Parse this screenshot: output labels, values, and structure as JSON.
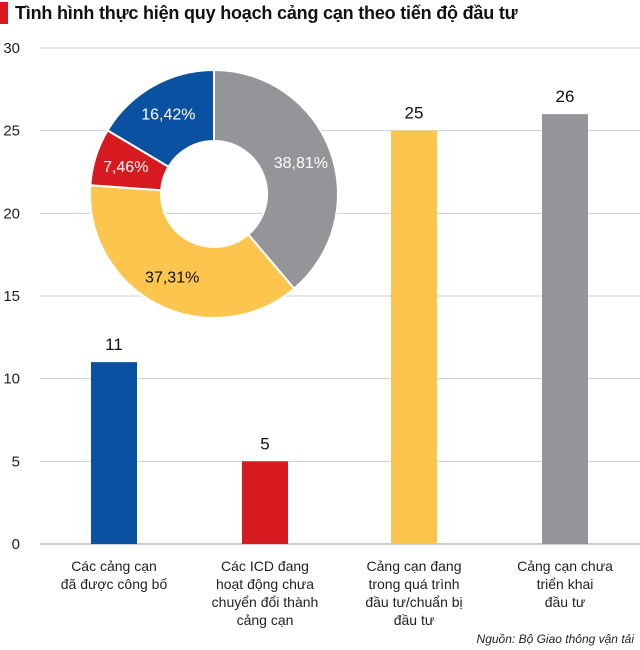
{
  "title": "Tình hình thực hiện quy hoạch cảng cạn theo tiến độ đầu tư",
  "source": "Nguồn: Bộ Giao thông vận tải",
  "chart_data": [
    {
      "type": "bar",
      "categories": [
        [
          "Các cảng cạn",
          "đã được công bố"
        ],
        [
          "Các ICD đang",
          "hoạt động chưa",
          "chuyển đổi thành",
          "cảng cạn"
        ],
        [
          "Cảng cạn đang",
          "trong quá trình",
          "đầu tư/chuẩn bị",
          "đầu tư"
        ],
        [
          "Cảng cạn chưa",
          "triển khai",
          "đầu tư"
        ]
      ],
      "values": [
        11,
        5,
        25,
        26
      ],
      "colors": [
        "#0a51a1",
        "#d71920",
        "#fcc54d",
        "#939598"
      ],
      "ylim": [
        0,
        30
      ],
      "yticks": [
        0,
        5,
        10,
        15,
        20,
        25,
        30
      ],
      "grid": true
    },
    {
      "type": "pie",
      "donut": true,
      "slices": [
        {
          "label": "38,81%",
          "value": 38.81,
          "color": "#939598",
          "text_color": "#ffffff"
        },
        {
          "label": "37,31%",
          "value": 37.31,
          "color": "#fcc54d",
          "text_color": "#111111"
        },
        {
          "label": "7,46%",
          "value": 7.46,
          "color": "#d71920",
          "text_color": "#ffffff"
        },
        {
          "label": "16,42%",
          "value": 16.42,
          "color": "#0a51a1",
          "text_color": "#ffffff"
        }
      ]
    }
  ]
}
